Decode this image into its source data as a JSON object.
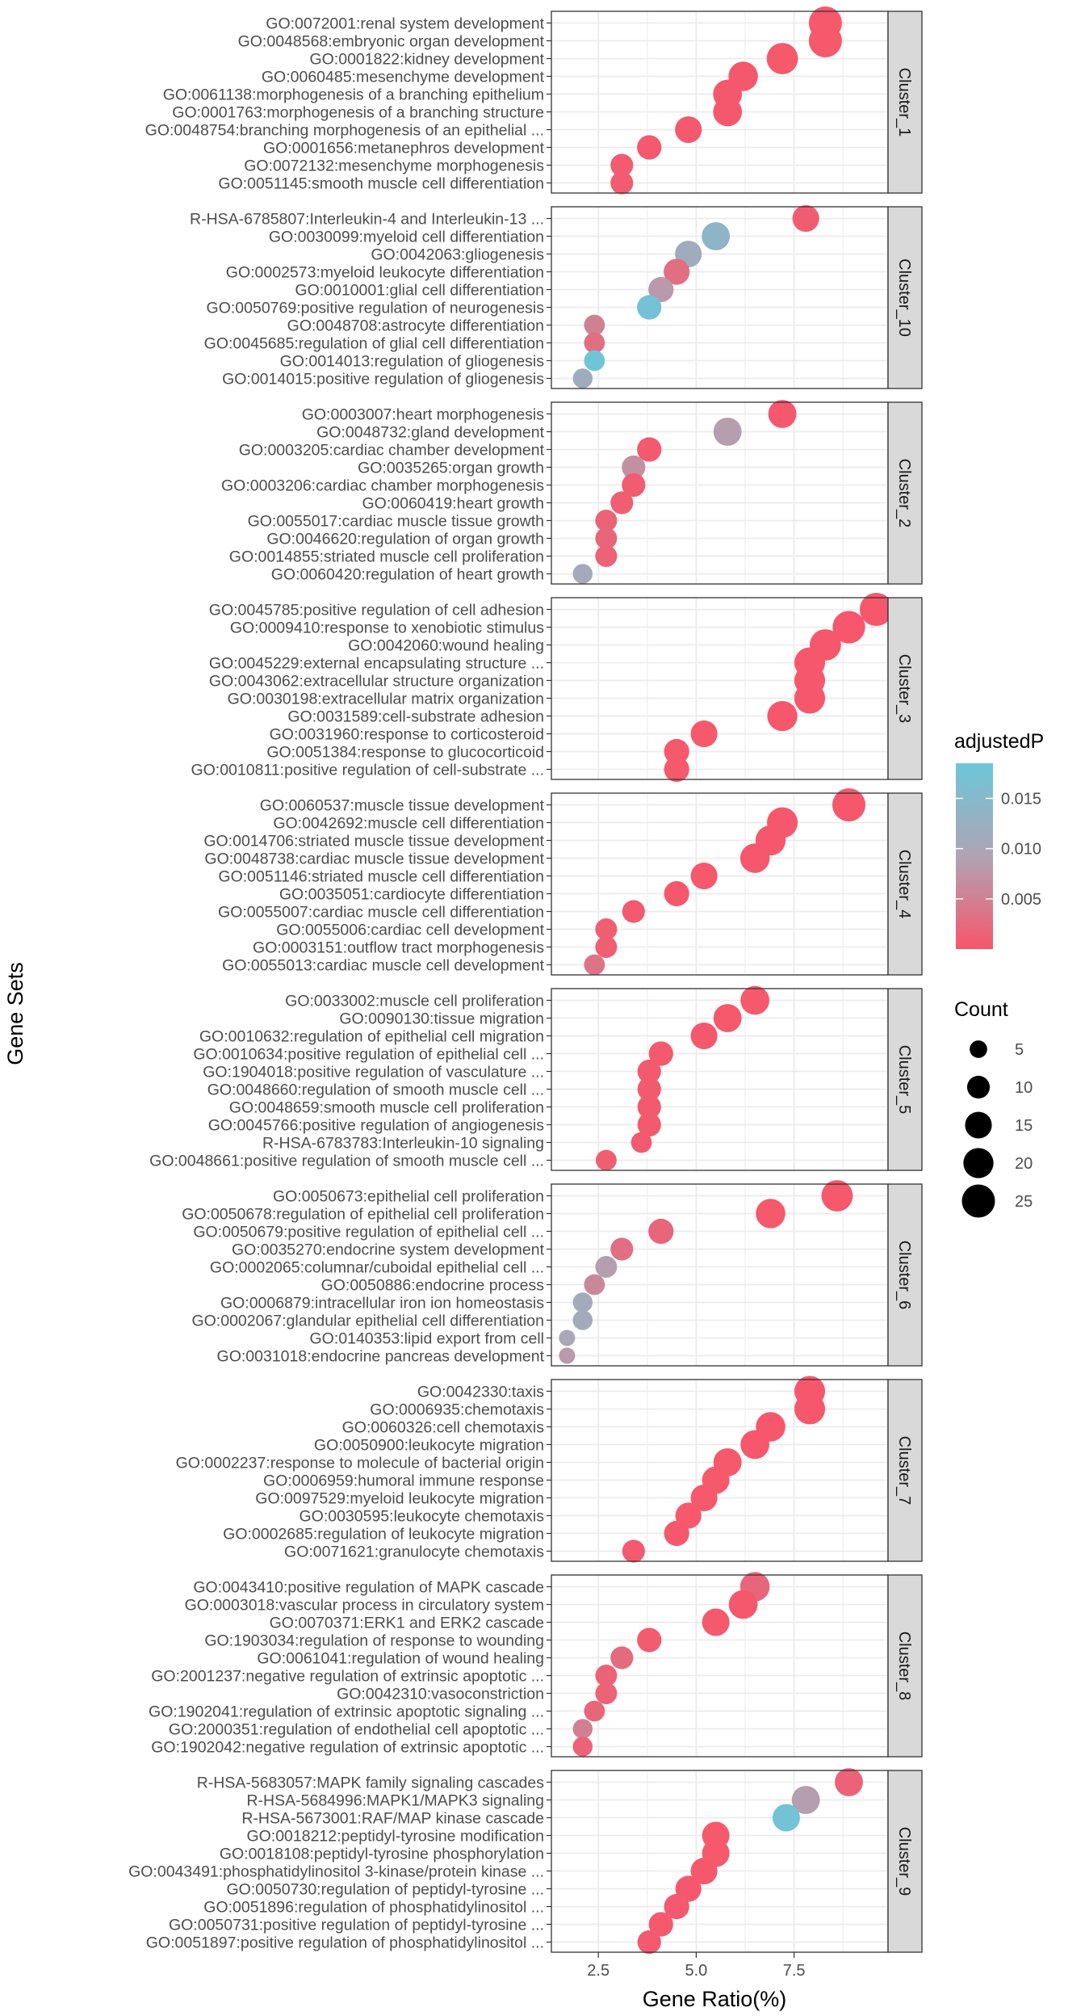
{
  "chart_data": {
    "type": "scatter",
    "xlabel": "Gene Ratio(%)",
    "ylabel": "Gene Sets",
    "xlim": [
      1.3,
      9.9
    ],
    "xticks": [
      2.5,
      5.0,
      7.5
    ],
    "xtick_labels": [
      "2.5",
      "5.0",
      "7.5"
    ],
    "grid": true,
    "legend_position": "right",
    "color_legend": {
      "title": "adjustedP",
      "min": 0,
      "max": 0.0185,
      "ticks": [
        0.005,
        0.01,
        0.015
      ],
      "tick_labels": [
        "0.005",
        "0.010",
        "0.015"
      ],
      "low_color": "#F8556A",
      "mid_color": "#AFA4B4",
      "high_color": "#6DC6D9"
    },
    "size_legend": {
      "title": "Count",
      "values": [
        5,
        10,
        15,
        20,
        25
      ],
      "labels": [
        "5",
        "10",
        "15",
        "20",
        "25"
      ]
    },
    "panels": [
      {
        "name": "Cluster_1",
        "terms": [
          {
            "label": "GO:0072001:renal system development",
            "x": 8.3,
            "count": 25,
            "p": 0.0003
          },
          {
            "label": "GO:0048568:embryonic organ development",
            "x": 8.3,
            "count": 25,
            "p": 0.0003
          },
          {
            "label": "GO:0001822:kidney development",
            "x": 7.2,
            "count": 22,
            "p": 0.0003
          },
          {
            "label": "GO:0060485:mesenchyme development",
            "x": 6.2,
            "count": 19,
            "p": 0.0004
          },
          {
            "label": "GO:0061138:morphogenesis of a branching epithelium",
            "x": 5.8,
            "count": 18,
            "p": 0.0004
          },
          {
            "label": "GO:0001763:morphogenesis of a branching structure",
            "x": 5.8,
            "count": 18,
            "p": 0.0004
          },
          {
            "label": "GO:0048754:branching morphogenesis of an epithelial ...",
            "x": 4.8,
            "count": 15,
            "p": 0.0005
          },
          {
            "label": "GO:0001656:metanephros development",
            "x": 3.8,
            "count": 12,
            "p": 0.0005
          },
          {
            "label": "GO:0072132:mesenchyme morphogenesis",
            "x": 3.1,
            "count": 10,
            "p": 0.0008
          },
          {
            "label": "GO:0051145:smooth muscle cell differentiation",
            "x": 3.1,
            "count": 10,
            "p": 0.0008
          }
        ]
      },
      {
        "name": "Cluster_10",
        "terms": [
          {
            "label": "R-HSA-6785807:Interleukin-4 and Interleukin-13 ...",
            "x": 7.8,
            "count": 15,
            "p": 0.0008
          },
          {
            "label": "GO:0030099:myeloid cell differentiation",
            "x": 5.5,
            "count": 17,
            "p": 0.014
          },
          {
            "label": "GO:0042063:gliogenesis",
            "x": 4.8,
            "count": 15,
            "p": 0.0115
          },
          {
            "label": "GO:0002573:myeloid leukocyte differentiation",
            "x": 4.5,
            "count": 14,
            "p": 0.003
          },
          {
            "label": "GO:0010001:glial cell differentiation",
            "x": 4.1,
            "count": 13,
            "p": 0.008
          },
          {
            "label": "GO:0050769:positive regulation of neurogenesis",
            "x": 3.8,
            "count": 12,
            "p": 0.0175
          },
          {
            "label": "GO:0048708:astrocyte differentiation",
            "x": 2.4,
            "count": 8,
            "p": 0.005
          },
          {
            "label": "GO:0045685:regulation of glial cell differentiation",
            "x": 2.4,
            "count": 8,
            "p": 0.003
          },
          {
            "label": "GO:0014013:regulation of gliogenesis",
            "x": 2.4,
            "count": 8,
            "p": 0.0182
          },
          {
            "label": "GO:0014015:positive regulation of gliogenesis",
            "x": 2.1,
            "count": 7,
            "p": 0.0115
          }
        ]
      },
      {
        "name": "Cluster_2",
        "terms": [
          {
            "label": "GO:0003007:heart morphogenesis",
            "x": 7.2,
            "count": 17,
            "p": 0.0004
          },
          {
            "label": "GO:0048732:gland development",
            "x": 5.8,
            "count": 17,
            "p": 0.0085
          },
          {
            "label": "GO:0003205:cardiac chamber development",
            "x": 3.8,
            "count": 12,
            "p": 0.0006
          },
          {
            "label": "GO:0035265:organ growth",
            "x": 3.4,
            "count": 11,
            "p": 0.007
          },
          {
            "label": "GO:0003206:cardiac chamber morphogenesis",
            "x": 3.4,
            "count": 11,
            "p": 0.0008
          },
          {
            "label": "GO:0060419:heart growth",
            "x": 3.1,
            "count": 10,
            "p": 0.001
          },
          {
            "label": "GO:0055017:cardiac muscle tissue growth",
            "x": 2.7,
            "count": 9,
            "p": 0.0015
          },
          {
            "label": "GO:0046620:regulation of organ growth",
            "x": 2.7,
            "count": 9,
            "p": 0.002
          },
          {
            "label": "GO:0014855:striated muscle cell proliferation",
            "x": 2.7,
            "count": 9,
            "p": 0.0015
          },
          {
            "label": "GO:0060420:regulation of heart growth",
            "x": 2.1,
            "count": 7,
            "p": 0.011
          }
        ]
      },
      {
        "name": "Cluster_3",
        "terms": [
          {
            "label": "GO:0045785:positive regulation of cell adhesion",
            "x": 9.6,
            "count": 25,
            "p": 0.0002
          },
          {
            "label": "GO:0009410:response to xenobiotic stimulus",
            "x": 8.9,
            "count": 24,
            "p": 0.0002
          },
          {
            "label": "GO:0042060:wound healing",
            "x": 8.3,
            "count": 22,
            "p": 0.0002
          },
          {
            "label": "GO:0045229:external encapsulating structure ...",
            "x": 7.9,
            "count": 21,
            "p": 0.0002
          },
          {
            "label": "GO:0043062:extracellular structure organization",
            "x": 7.9,
            "count": 21,
            "p": 0.0002
          },
          {
            "label": "GO:0030198:extracellular matrix organization",
            "x": 7.9,
            "count": 21,
            "p": 0.0002
          },
          {
            "label": "GO:0031589:cell-substrate adhesion",
            "x": 7.2,
            "count": 20,
            "p": 0.0002
          },
          {
            "label": "GO:0031960:response to corticosteroid",
            "x": 5.2,
            "count": 15,
            "p": 0.0003
          },
          {
            "label": "GO:0051384:response to glucocorticoid",
            "x": 4.5,
            "count": 13,
            "p": 0.0003
          },
          {
            "label": "GO:0010811:positive regulation of cell-substrate ...",
            "x": 4.5,
            "count": 13,
            "p": 0.0003
          }
        ]
      },
      {
        "name": "Cluster_4",
        "terms": [
          {
            "label": "GO:0060537:muscle tissue development",
            "x": 8.9,
            "count": 25,
            "p": 0.0002
          },
          {
            "label": "GO:0042692:muscle cell differentiation",
            "x": 7.2,
            "count": 21,
            "p": 0.0002
          },
          {
            "label": "GO:0014706:striated muscle tissue development",
            "x": 6.9,
            "count": 20,
            "p": 0.0002
          },
          {
            "label": "GO:0048738:cardiac muscle tissue development",
            "x": 6.5,
            "count": 19,
            "p": 0.0002
          },
          {
            "label": "GO:0051146:striated muscle cell differentiation",
            "x": 5.2,
            "count": 15,
            "p": 0.0003
          },
          {
            "label": "GO:0035051:cardiocyte differentiation",
            "x": 4.5,
            "count": 13,
            "p": 0.0004
          },
          {
            "label": "GO:0055007:cardiac muscle cell differentiation",
            "x": 3.4,
            "count": 10,
            "p": 0.0006
          },
          {
            "label": "GO:0055006:cardiac cell development",
            "x": 2.7,
            "count": 9,
            "p": 0.001
          },
          {
            "label": "GO:0003151:outflow tract morphogenesis",
            "x": 2.7,
            "count": 9,
            "p": 0.001
          },
          {
            "label": "GO:0055013:cardiac muscle cell development",
            "x": 2.4,
            "count": 8,
            "p": 0.0035
          }
        ]
      },
      {
        "name": "Cluster_5",
        "terms": [
          {
            "label": "GO:0033002:muscle cell proliferation",
            "x": 6.5,
            "count": 18,
            "p": 0.0003
          },
          {
            "label": "GO:0090130:tissue migration",
            "x": 5.8,
            "count": 17,
            "p": 0.0003
          },
          {
            "label": "GO:0010632:regulation of epithelial cell migration",
            "x": 5.2,
            "count": 15,
            "p": 0.0004
          },
          {
            "label": "GO:0010634:positive regulation of epithelial cell ...",
            "x": 4.1,
            "count": 12,
            "p": 0.0005
          },
          {
            "label": "GO:1904018:positive regulation of vasculature ...",
            "x": 3.8,
            "count": 11,
            "p": 0.0006
          },
          {
            "label": "GO:0048660:regulation of smooth muscle cell ...",
            "x": 3.8,
            "count": 11,
            "p": 0.0006
          },
          {
            "label": "GO:0048659:smooth muscle cell proliferation",
            "x": 3.8,
            "count": 11,
            "p": 0.0006
          },
          {
            "label": "GO:0045766:positive regulation of angiogenesis",
            "x": 3.8,
            "count": 11,
            "p": 0.0006
          },
          {
            "label": "R-HSA-6783783:Interleukin-10 signaling",
            "x": 3.6,
            "count": 8,
            "p": 0.0006
          },
          {
            "label": "GO:0048661:positive regulation of smooth muscle cell ...",
            "x": 2.7,
            "count": 8,
            "p": 0.001
          }
        ]
      },
      {
        "name": "Cluster_6",
        "terms": [
          {
            "label": "GO:0050673:epithelial cell proliferation",
            "x": 8.6,
            "count": 22,
            "p": 0.0003
          },
          {
            "label": "GO:0050678:regulation of epithelial cell proliferation",
            "x": 6.9,
            "count": 19,
            "p": 0.0003
          },
          {
            "label": "GO:0050679:positive regulation of epithelial cell ...",
            "x": 4.1,
            "count": 13,
            "p": 0.002
          },
          {
            "label": "GO:0035270:endocrine system development",
            "x": 3.1,
            "count": 10,
            "p": 0.003
          },
          {
            "label": "GO:0002065:columnar/cuboidal epithelial cell ...",
            "x": 2.7,
            "count": 9,
            "p": 0.0085
          },
          {
            "label": "GO:0050886:endocrine process",
            "x": 2.4,
            "count": 8,
            "p": 0.006
          },
          {
            "label": "GO:0006879:intracellular iron ion homeostasis",
            "x": 2.1,
            "count": 7,
            "p": 0.011
          },
          {
            "label": "GO:0002067:glandular epithelial cell differentiation",
            "x": 2.1,
            "count": 7,
            "p": 0.011
          },
          {
            "label": "GO:0140353:lipid export from cell",
            "x": 1.7,
            "count": 4,
            "p": 0.01
          },
          {
            "label": "GO:0031018:endocrine pancreas development",
            "x": 1.7,
            "count": 4,
            "p": 0.008
          }
        ]
      },
      {
        "name": "Cluster_7",
        "terms": [
          {
            "label": "GO:0042330:taxis",
            "x": 7.9,
            "count": 21,
            "p": 0.0002
          },
          {
            "label": "GO:0006935:chemotaxis",
            "x": 7.9,
            "count": 21,
            "p": 0.0002
          },
          {
            "label": "GO:0060326:cell chemotaxis",
            "x": 6.9,
            "count": 19,
            "p": 0.0002
          },
          {
            "label": "GO:0050900:leukocyte migration",
            "x": 6.5,
            "count": 18,
            "p": 0.0002
          },
          {
            "label": "GO:0002237:response to molecule of bacterial origin",
            "x": 5.8,
            "count": 17,
            "p": 0.0003
          },
          {
            "label": "GO:0006959:humoral immune response",
            "x": 5.5,
            "count": 16,
            "p": 0.0003
          },
          {
            "label": "GO:0097529:myeloid leukocyte migration",
            "x": 5.2,
            "count": 15,
            "p": 0.0003
          },
          {
            "label": "GO:0030595:leukocyte chemotaxis",
            "x": 4.8,
            "count": 14,
            "p": 0.0003
          },
          {
            "label": "GO:0002685:regulation of leukocyte migration",
            "x": 4.5,
            "count": 13,
            "p": 0.0004
          },
          {
            "label": "GO:0071621:granulocyte chemotaxis",
            "x": 3.4,
            "count": 10,
            "p": 0.0006
          }
        ]
      },
      {
        "name": "Cluster_8",
        "terms": [
          {
            "label": "GO:0043410:positive regulation of MAPK cascade",
            "x": 6.5,
            "count": 19,
            "p": 0.002
          },
          {
            "label": "GO:0003018:vascular process in circulatory system",
            "x": 6.2,
            "count": 18,
            "p": 0.0004
          },
          {
            "label": "GO:0070371:ERK1 and ERK2 cascade",
            "x": 5.5,
            "count": 16,
            "p": 0.0005
          },
          {
            "label": "GO:1903034:regulation of response to wounding",
            "x": 3.8,
            "count": 12,
            "p": 0.0008
          },
          {
            "label": "GO:0061041:regulation of wound healing",
            "x": 3.1,
            "count": 10,
            "p": 0.0025
          },
          {
            "label": "GO:2001237:negative regulation of extrinsic apoptotic ...",
            "x": 2.7,
            "count": 9,
            "p": 0.0015
          },
          {
            "label": "GO:0042310:vasoconstriction",
            "x": 2.7,
            "count": 9,
            "p": 0.0015
          },
          {
            "label": "GO:1902041:regulation of extrinsic apoptotic signaling ...",
            "x": 2.4,
            "count": 8,
            "p": 0.002
          },
          {
            "label": "GO:2000351:regulation of endothelial cell apoptotic ...",
            "x": 2.1,
            "count": 7,
            "p": 0.005
          },
          {
            "label": "GO:1902042:negative regulation of extrinsic apoptotic ...",
            "x": 2.1,
            "count": 7,
            "p": 0.0015
          }
        ]
      },
      {
        "name": "Cluster_9",
        "terms": [
          {
            "label": "R-HSA-5683057:MAPK family signaling cascades",
            "x": 8.9,
            "count": 17,
            "p": 0.0015
          },
          {
            "label": "R-HSA-5684996:MAPK1/MAPK3 signaling",
            "x": 7.8,
            "count": 17,
            "p": 0.0085
          },
          {
            "label": "R-HSA-5673001:RAF/MAP kinase cascade",
            "x": 7.3,
            "count": 16,
            "p": 0.0175
          },
          {
            "label": "GO:0018212:peptidyl-tyrosine modification",
            "x": 5.5,
            "count": 16,
            "p": 0.0003
          },
          {
            "label": "GO:0018108:peptidyl-tyrosine phosphorylation",
            "x": 5.5,
            "count": 16,
            "p": 0.0003
          },
          {
            "label": "GO:0043491:phosphatidylinositol 3-kinase/protein kinase ...",
            "x": 5.2,
            "count": 15,
            "p": 0.0004
          },
          {
            "label": "GO:0050730:regulation of peptidyl-tyrosine ...",
            "x": 4.8,
            "count": 14,
            "p": 0.0004
          },
          {
            "label": "GO:0051896:regulation of phosphatidylinositol ...",
            "x": 4.5,
            "count": 13,
            "p": 0.0006
          },
          {
            "label": "GO:0050731:positive regulation of peptidyl-tyrosine ...",
            "x": 4.1,
            "count": 12,
            "p": 0.0005
          },
          {
            "label": "GO:0051897:positive regulation of phosphatidylinositol ...",
            "x": 3.8,
            "count": 11,
            "p": 0.0006
          }
        ]
      }
    ]
  }
}
